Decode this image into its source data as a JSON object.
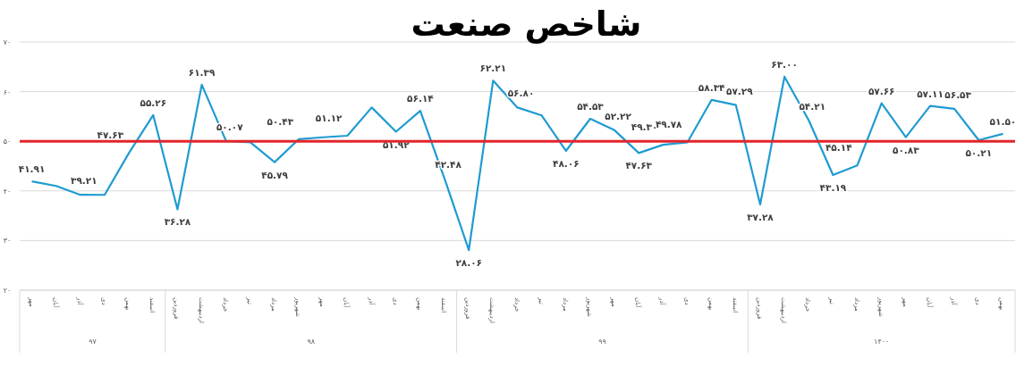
{
  "chart_data": {
    "type": "line",
    "title": "شاخص صنعت",
    "categories": [
      "مهر",
      "آبان",
      "آذر",
      "دی",
      "بهمن",
      "اسفند",
      "فروردین",
      "اردیبهشت",
      "خرداد",
      "تیر",
      "مرداد",
      "شهریور",
      "مهر",
      "آبان",
      "آذر",
      "دی",
      "بهمن",
      "اسفند",
      "فروردین",
      "اردیبهشت",
      "خرداد",
      "تیر",
      "مرداد",
      "شهریور",
      "مهر",
      "آبان",
      "آذر",
      "دی",
      "بهمن",
      "اسفند",
      "فروردین",
      "اردیبهشت",
      "خرداد",
      "تیر",
      "مرداد",
      "شهریور",
      "مهر",
      "آبان",
      "آذر",
      "دی",
      "بهمن"
    ],
    "series": [
      {
        "color": "#1f9bd1",
        "values": [
          41.91,
          41.0,
          39.21,
          39.2,
          47.63,
          55.26,
          36.28,
          61.39,
          50.07,
          49.8,
          45.79,
          50.43,
          50.8,
          51.12,
          56.8,
          51.92,
          56.14,
          42.48,
          28.06,
          62.21,
          56.8,
          55.2,
          48.06,
          54.53,
          52.22,
          47.63,
          49.3,
          49.78,
          58.34,
          57.29,
          37.28,
          63.0,
          54.21,
          43.19,
          45.14,
          57.66,
          50.83,
          57.11,
          56.53,
          50.21,
          51.5
        ],
        "value_labels": [
          "۴۱.۹۱",
          null,
          "۳۹.۲۱",
          null,
          "۴۷.۶۳",
          "۵۵.۲۶",
          "۳۶.۲۸",
          "۶۱.۳۹",
          "۵۰.۰۷",
          null,
          "۴۵.۷۹",
          "۵۰.۴۳",
          null,
          "۵۱.۱۲",
          null,
          "۵۱.۹۲",
          "۵۶.۱۴",
          "۴۲.۴۸",
          "۲۸.۰۶",
          "۶۲.۲۱",
          "۵۶.۸۰",
          null,
          "۴۸.۰۶",
          "۵۴.۵۳",
          "۵۲.۲۲",
          "۴۷.۶۳",
          "۴۹.۳۰",
          "۴۹.۷۸",
          "۵۸.۳۴",
          "۵۷.۲۹",
          "۳۷.۲۸",
          "۶۳.۰۰",
          "۵۴.۲۱",
          "۴۳.۱۹",
          "۴۵.۱۴",
          "۵۷.۶۶",
          "۵۰.۸۳",
          "۵۷.۱۱",
          "۵۶.۵۳",
          "۵۰.۲۱",
          "۵۱.۵۰"
        ]
      }
    ],
    "ylim": [
      20,
      70
    ],
    "yticks": [
      {
        "value": 20,
        "label": "۲۰"
      },
      {
        "value": 30,
        "label": "۳۰"
      },
      {
        "value": 40,
        "label": "۴۰"
      },
      {
        "value": 50,
        "label": "۵۰"
      },
      {
        "value": 60,
        "label": "۶۰"
      },
      {
        "value": 70,
        "label": "۷۰"
      }
    ],
    "grid": "y",
    "marker": "none",
    "line_style": "solid",
    "ref_lines": [
      {
        "axis": "y",
        "value": 50,
        "color": "#e3242b",
        "line_style": "solid"
      }
    ],
    "annotations": [
      "۹۷",
      "۹۸",
      "۹۹",
      "۱۴۰۰"
    ]
  }
}
